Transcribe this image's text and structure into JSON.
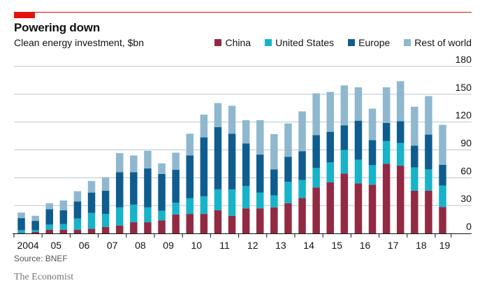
{
  "header": {
    "title": "Powering down",
    "subtitle": "Clean energy investment, $bn"
  },
  "footer": {
    "source": "Source: BNEF",
    "brand": "The Economist"
  },
  "chart_data": {
    "type": "bar",
    "stacked": true,
    "title": "Powering down",
    "subtitle": "Clean energy investment, $bn",
    "xlabel": "",
    "ylabel": "",
    "ylim": [
      0,
      180
    ],
    "yticks": [
      0,
      30,
      60,
      90,
      120,
      150,
      180
    ],
    "y_axis_side": "right",
    "grid": true,
    "legend_position": "top-right",
    "x_tick_labels": [
      "2004",
      "05",
      "06",
      "07",
      "08",
      "09",
      "10",
      "11",
      "12",
      "13",
      "14",
      "15",
      "16",
      "17",
      "18",
      "19"
    ],
    "categories": [
      "2004 H1",
      "2004 H2",
      "2005 H1",
      "2005 H2",
      "2006 H1",
      "2006 H2",
      "2007 H1",
      "2007 H2",
      "2008 H1",
      "2008 H2",
      "2009 H1",
      "2009 H2",
      "2010 H1",
      "2010 H2",
      "2011 H1",
      "2011 H2",
      "2012 H1",
      "2012 H2",
      "2013 H1",
      "2013 H2",
      "2014 H1",
      "2014 H2",
      "2015 H1",
      "2015 H2",
      "2016 H1",
      "2016 H2",
      "2017 H1",
      "2017 H2",
      "2018 H1",
      "2018 H2",
      "2019 H1"
    ],
    "series": [
      {
        "name": "China",
        "color": "#922a43",
        "values": [
          0.5,
          1.5,
          4,
          4,
          4,
          5,
          7,
          8.5,
          12,
          12,
          14,
          20.5,
          21,
          21,
          25,
          19,
          27,
          27,
          28,
          32.5,
          38,
          49.5,
          55,
          64.5,
          54,
          52.5,
          75,
          73,
          46,
          46,
          28.5
        ]
      },
      {
        "name": "United States",
        "color": "#18b3c8",
        "values": [
          3,
          2,
          5.5,
          6,
          12,
          17,
          14,
          19.5,
          19,
          16,
          10.5,
          12.5,
          17,
          19,
          22.5,
          28.5,
          24,
          17,
          13,
          23,
          19.5,
          21,
          21.5,
          25.5,
          25.5,
          21,
          24.5,
          24.5,
          25,
          23,
          23
        ]
      },
      {
        "name": "Europe",
        "color": "#0f5d8f",
        "values": [
          13,
          10,
          16.5,
          15,
          18.5,
          22,
          25,
          38,
          35,
          42,
          39.5,
          35.5,
          46,
          63.5,
          67,
          60,
          46,
          41,
          28,
          27,
          31,
          35.5,
          33,
          26.5,
          42,
          27,
          19.5,
          23.5,
          23.5,
          37.5,
          22.5
        ]
      },
      {
        "name": "Rest of world",
        "color": "#8fb8cf",
        "values": [
          6,
          5.5,
          6.5,
          10.5,
          11,
          12.5,
          14.5,
          20.5,
          18,
          19,
          11.5,
          18.5,
          23.5,
          24.5,
          26,
          30,
          25,
          37,
          38,
          36,
          43,
          45,
          43,
          43,
          36,
          34,
          38.5,
          43,
          42,
          41.5,
          43
        ]
      }
    ]
  }
}
